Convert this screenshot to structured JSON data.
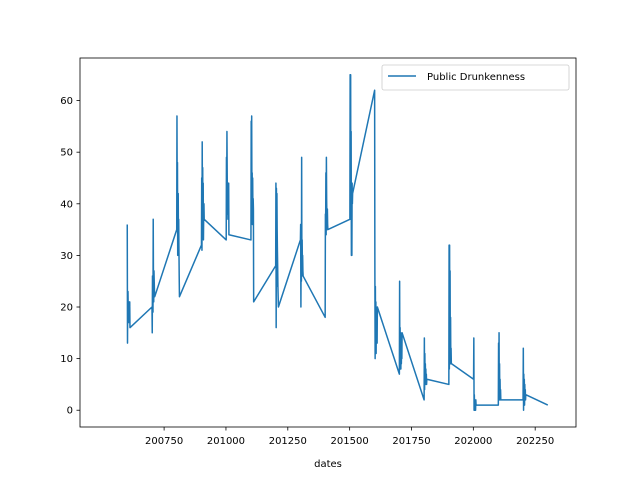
{
  "chart_data": {
    "type": "line",
    "title": "",
    "xlabel": "dates",
    "ylabel": "",
    "xlim": [
      200410,
      202415
    ],
    "ylim": [
      -3.25,
      68.25
    ],
    "xticks": [
      200750,
      201000,
      201250,
      201500,
      201750,
      202000,
      202250
    ],
    "xtick_labels": [
      "200750",
      "201000",
      "201250",
      "201500",
      "201750",
      "202000",
      "202250"
    ],
    "yticks": [
      0,
      10,
      20,
      30,
      40,
      50,
      60
    ],
    "ytick_labels": [
      "0",
      "10",
      "20",
      "30",
      "40",
      "50",
      "60"
    ],
    "grid": false,
    "legend_position": "top-right",
    "series": [
      {
        "name": "Public Drunkenness",
        "color": "#1f77b4",
        "x": [
          200601,
          200602,
          200603,
          200604,
          200605,
          200606,
          200607,
          200608,
          200609,
          200610,
          200611,
          200612,
          200701,
          200702,
          200703,
          200704,
          200705,
          200706,
          200707,
          200708,
          200709,
          200710,
          200711,
          200712,
          200801,
          200802,
          200803,
          200804,
          200805,
          200806,
          200807,
          200808,
          200809,
          200810,
          200811,
          200812,
          200901,
          200902,
          200903,
          200904,
          200905,
          200906,
          200907,
          200908,
          200909,
          200910,
          200911,
          200912,
          201001,
          201002,
          201003,
          201004,
          201005,
          201006,
          201007,
          201008,
          201009,
          201010,
          201011,
          201012,
          201101,
          201102,
          201103,
          201104,
          201105,
          201106,
          201107,
          201108,
          201109,
          201110,
          201111,
          201112,
          201201,
          201202,
          201203,
          201204,
          201205,
          201206,
          201207,
          201208,
          201209,
          201210,
          201211,
          201212,
          201301,
          201302,
          201303,
          201304,
          201305,
          201306,
          201307,
          201308,
          201309,
          201310,
          201311,
          201312,
          201401,
          201402,
          201403,
          201404,
          201405,
          201406,
          201407,
          201408,
          201409,
          201410,
          201411,
          201412,
          201501,
          201502,
          201503,
          201504,
          201505,
          201506,
          201507,
          201508,
          201509,
          201510,
          201511,
          201512,
          201601,
          201602,
          201603,
          201604,
          201605,
          201606,
          201607,
          201608,
          201609,
          201610,
          201611,
          201612,
          201701,
          201702,
          201703,
          201704,
          201705,
          201706,
          201707,
          201708,
          201709,
          201710,
          201711,
          201712,
          201801,
          201802,
          201803,
          201804,
          201805,
          201806,
          201807,
          201808,
          201809,
          201810,
          201811,
          201812,
          201901,
          201902,
          201903,
          201904,
          201905,
          201906,
          201907,
          201908,
          201909,
          201910,
          201911,
          201912,
          202001,
          202002,
          202003,
          202004,
          202005,
          202006,
          202007,
          202008,
          202009,
          202010,
          202011,
          202012,
          202101,
          202102,
          202103,
          202104,
          202105,
          202106,
          202107,
          202108,
          202109,
          202110,
          202111,
          202112,
          202201,
          202202,
          202203,
          202204,
          202205,
          202206,
          202207,
          202208,
          202209,
          202210,
          202211,
          202212,
          202301
        ],
        "y": [
          36,
          13,
          22,
          23,
          19,
          17,
          21,
          17,
          18,
          20,
          21,
          16,
          20,
          15,
          26,
          22,
          19,
          37,
          24,
          21,
          27,
          25,
          23,
          22,
          35,
          57,
          40,
          48,
          30,
          38,
          42,
          33,
          37,
          31,
          26,
          22,
          32,
          45,
          31,
          52,
          38,
          47,
          35,
          44,
          33,
          38,
          40,
          37,
          33,
          49,
          40,
          54,
          46,
          38,
          42,
          37,
          40,
          39,
          44,
          34,
          33,
          56,
          39,
          57,
          40,
          46,
          36,
          45,
          38,
          41,
          39,
          21,
          28,
          44,
          16,
          43,
          24,
          42,
          35,
          31,
          28,
          24,
          22,
          20,
          33,
          36,
          20,
          34,
          25,
          49,
          26,
          33,
          28,
          30,
          27,
          26,
          18,
          38,
          36,
          46,
          34,
          49,
          41,
          37,
          35,
          39,
          36,
          35,
          37,
          65,
          46,
          65,
          37,
          54,
          30,
          43,
          30,
          44,
          40,
          42,
          62,
          27,
          10,
          24,
          12,
          21,
          11,
          19,
          14,
          15,
          13,
          20,
          7,
          25,
          8,
          16,
          9,
          15,
          8,
          14,
          9,
          12,
          10,
          15,
          2,
          14,
          4,
          11,
          6,
          9,
          5,
          8,
          5,
          7,
          5,
          6,
          5,
          32,
          8,
          32,
          9,
          27,
          9,
          18,
          9,
          12,
          9,
          9,
          6,
          14,
          0,
          3,
          0,
          2,
          1,
          1,
          0,
          2,
          1,
          1,
          1,
          13,
          3,
          15,
          2,
          9,
          2,
          6,
          2,
          4,
          2,
          2,
          2,
          12,
          0,
          7,
          2,
          6,
          1,
          5,
          2,
          4,
          2,
          3,
          1
        ]
      }
    ]
  }
}
